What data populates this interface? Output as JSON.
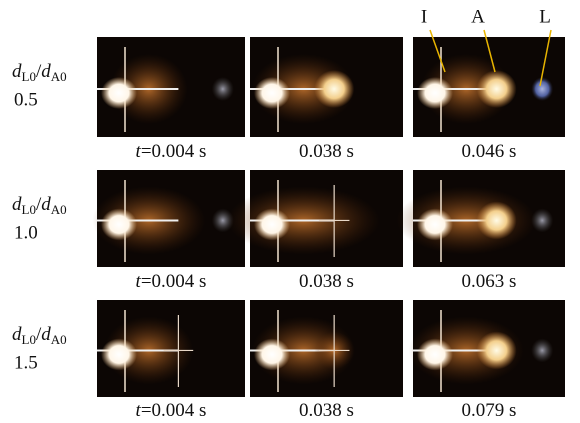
{
  "ratio_label": {
    "d1": "d",
    "s1": "L0",
    "slash": "/",
    "d2": "d",
    "s2": "A0"
  },
  "annotations": [
    "I",
    "A",
    "L"
  ],
  "rows": [
    {
      "ratio": "0.5",
      "captions": [
        {
          "var": "t",
          "text": "=0.004 s"
        },
        {
          "text": "0.038 s"
        },
        {
          "text": "0.046 s"
        }
      ]
    },
    {
      "ratio": "1.0",
      "captions": [
        {
          "var": "t",
          "text": "=0.004 s"
        },
        {
          "text": "0.038 s"
        },
        {
          "text": "0.063 s"
        }
      ]
    },
    {
      "ratio": "1.5",
      "captions": [
        {
          "var": "t",
          "text": "=0.004 s"
        },
        {
          "text": "0.038 s"
        },
        {
          "text": "0.079 s"
        }
      ]
    }
  ]
}
